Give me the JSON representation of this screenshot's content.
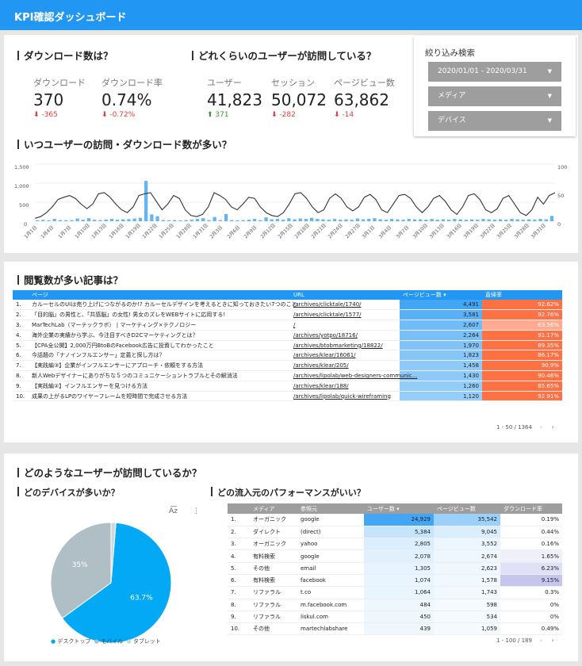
{
  "header": {
    "title": "KPI確認ダッシュボード"
  },
  "download": {
    "heading": "ダウンロード数は？",
    "kpis": [
      {
        "label": "ダウンロード",
        "value": "370",
        "delta": "-365",
        "dir": "down"
      },
      {
        "label": "ダウンロード率",
        "value": "0.74%",
        "delta": "-0.72%",
        "dir": "down"
      }
    ]
  },
  "users": {
    "heading": "どれくらいのユーザーが訪問している？",
    "kpis": [
      {
        "label": "ユーザー",
        "value": "41,823",
        "delta": "371",
        "dir": "up"
      },
      {
        "label": "セッション",
        "value": "50,072",
        "delta": "-282",
        "dir": "down"
      },
      {
        "label": "ページビュー数",
        "value": "63,862",
        "delta": "-14",
        "dir": "down"
      }
    ]
  },
  "filter": {
    "title": "絞り込み検索",
    "date": "2020/01/01 - 2020/03/31",
    "media": "メディア",
    "device": "デバイス"
  },
  "timeline": {
    "heading": "いつユーザーの訪問・ダウンロード数が多い？",
    "left_ticks": [
      "1,500",
      "1,000",
      "500",
      "0"
    ],
    "right_ticks": [
      "100",
      "50",
      "0"
    ],
    "dates": [
      "1月1日",
      "1月4日",
      "1月7日",
      "1月10日",
      "1月13日",
      "1月16日",
      "1月19日",
      "1月22日",
      "1月25日",
      "1月28日",
      "1月31日",
      "2月3日",
      "2月6日",
      "2月9日",
      "2月12日",
      "2月15日",
      "2月18日",
      "2月21日",
      "2月24日",
      "2月27日",
      "3月1日",
      "3月4日",
      "3月7日",
      "3月10日",
      "3月13日",
      "3月16日",
      "3月19日",
      "3月22日",
      "3月25日",
      "3月28日",
      "3月31日"
    ]
  },
  "chart_data": {
    "type": "bar+line",
    "title": "いつユーザーの訪問・ダウンロード数が多い？",
    "y_left_range": [
      0,
      1500
    ],
    "y_right_range": [
      0,
      100
    ],
    "series": [
      {
        "name": "ダウンロード",
        "axis": "left",
        "values": [
          20,
          35,
          25,
          60,
          30,
          25,
          30,
          70,
          40,
          80,
          40,
          30,
          45,
          60,
          40,
          50,
          55,
          70,
          90,
          1060,
          180,
          130,
          30,
          25,
          30,
          20,
          30,
          40,
          60,
          80,
          30,
          110,
          30,
          190,
          30,
          25,
          30,
          40,
          60,
          30,
          100,
          50,
          60,
          40,
          80,
          50,
          70,
          60,
          90,
          60,
          50,
          40,
          60,
          40,
          50,
          40,
          70,
          50,
          60,
          80,
          50,
          40,
          60,
          50,
          40,
          60,
          50,
          50,
          40,
          60,
          40,
          50,
          40,
          60,
          50,
          40,
          50,
          40,
          60,
          50,
          40,
          50,
          40,
          60,
          50,
          40,
          50,
          40,
          60,
          50,
          140
        ]
      },
      {
        "name": "ユーザー",
        "axis": "right",
        "values": [
          5,
          8,
          15,
          25,
          38,
          42,
          45,
          40,
          30,
          22,
          30,
          48,
          50,
          42,
          30,
          20,
          15,
          25,
          45,
          48,
          50,
          35,
          20,
          30,
          45,
          40,
          20,
          10,
          8,
          12,
          25,
          50,
          45,
          38,
          25,
          20,
          30,
          42,
          40,
          25,
          15,
          10,
          8,
          15,
          30,
          48,
          50,
          40,
          25,
          15,
          20,
          40,
          48,
          40,
          25,
          18,
          25,
          42,
          47,
          38,
          20,
          15,
          30,
          45,
          47,
          40,
          25,
          15,
          25,
          40,
          45,
          35,
          20,
          12,
          25,
          45,
          48,
          38,
          20,
          15,
          22,
          40,
          45,
          30,
          15,
          10,
          20,
          42,
          30,
          45,
          50
        ]
      }
    ]
  },
  "articles": {
    "heading": "閲覧数が多い記事は？",
    "columns": [
      "ページ",
      "URL",
      "ページビュー数 ▾",
      "直帰率"
    ],
    "rows": [
      [
        "1.",
        "カルーセルのUIは売り上げにつながるのか!? カルーセルデザインを考えるときに知っておきたい7つのこと",
        "/archives/clicktale/1740/",
        "4,491",
        "92.62%"
      ],
      [
        "2.",
        "「目的脳」の男性と、「共感脳」の女性! 男女のズレをWEBサイトに応用する!",
        "/archives/clicktale/1577/",
        "3,581",
        "92.76%"
      ],
      [
        "3.",
        "MarTechLab（マーテックラボ） | マーケティング×テクノロジー",
        "/",
        "2,607",
        "63.56%"
      ],
      [
        "4.",
        "海外企業の実績から学ぶ、今注目すべきD2Cマーケティングとは？",
        "/archives/yotpo/18716/",
        "2,264",
        "91.17%"
      ],
      [
        "5.",
        "【CPA全公開】2,000万円BtoBのFacebook広告に投資してわかったこと",
        "/archives/btobmarketing/18822/",
        "1,970",
        "89.35%"
      ],
      [
        "6.",
        "今話題の「ナノインフルエンサー」定義と探し方は？",
        "/archives/klear/16061/",
        "1,823",
        "86.17%"
      ],
      [
        "7.",
        "【実践編③】企業がインフルエンサーにアプローチ・依頼をする方法",
        "/archives/klear/205/",
        "1,458",
        "90.9%"
      ],
      [
        "8.",
        "新人Webデザイナーにありがちな５つのコミュニケーショントラブルとその解消法",
        "/archives/lipolab/web-designers-communic...",
        "1,430",
        "90.46%"
      ],
      [
        "9.",
        "【実践編②】インフルエンサーを見つける方法",
        "/archives/klear/188/",
        "1,260",
        "85.65%"
      ],
      [
        "10.",
        "成果の上がるLPのワイヤーフレームを短時間で完成させる方法",
        "/archives/lipolab/quick-wireframing",
        "1,120",
        "92.91%"
      ]
    ],
    "pager": "1 - 50 / 1364"
  },
  "visitors": {
    "heading": "どのようなユーザーが訪問しているか？"
  },
  "devices": {
    "heading": "どのデバイスが多いか？",
    "slices": [
      {
        "label": "デスクトップ",
        "pct": 63.7,
        "display": "63.7%",
        "color": "#03a9f4"
      },
      {
        "label": "モバイル",
        "pct": 35,
        "display": "35%",
        "color": "#b0bec5"
      },
      {
        "label": "タブレット",
        "pct": 1.3,
        "display": "",
        "color": "#cfd8dc"
      }
    ]
  },
  "sources": {
    "heading": "どの流入元のパフォーマンスがいい？",
    "columns": [
      "メディア",
      "参照元",
      "ユーザー数 ▾",
      "ページビュー数",
      "ダウンロード率"
    ],
    "rows": [
      [
        "1.",
        "オーガニック",
        "google",
        "24,929",
        "35,542",
        "0.19%"
      ],
      [
        "2.",
        "ダイレクト",
        "(direct)",
        "5,384",
        "9,045",
        "0.44%"
      ],
      [
        "3.",
        "オーガニック",
        "yahoo",
        "2,805",
        "3,552",
        "0.16%"
      ],
      [
        "4.",
        "有料検索",
        "google",
        "2,078",
        "2,674",
        "1.65%"
      ],
      [
        "5.",
        "その他",
        "email",
        "1,305",
        "2,623",
        "6.23%"
      ],
      [
        "6.",
        "有料検索",
        "facebook",
        "1,074",
        "1,578",
        "9.15%"
      ],
      [
        "7.",
        "リファラル",
        "t.co",
        "1,064",
        "1,743",
        "0.3%"
      ],
      [
        "8.",
        "リファラル",
        "m.facebook.com",
        "484",
        "598",
        "0%"
      ],
      [
        "9.",
        "リファラル",
        "liskul.com",
        "450",
        "534",
        "0%"
      ],
      [
        "10.",
        "その他",
        "martechlabshare",
        "439",
        "1,059",
        "0.49%"
      ]
    ],
    "pager": "1 - 100 / 189"
  }
}
